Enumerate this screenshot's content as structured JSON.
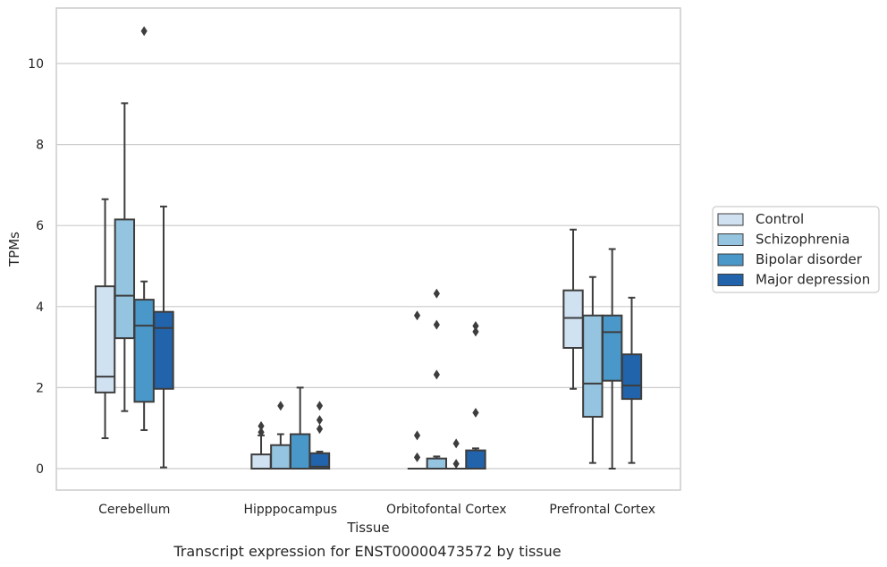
{
  "chart_data": {
    "type": "box",
    "title": "",
    "caption": "Transcript expression for ENST00000473572 by tissue",
    "xlabel": "Tissue",
    "ylabel": "TPMs",
    "ylim": [
      -0.5,
      11.4
    ],
    "yticks": [
      0,
      2,
      4,
      6,
      8,
      10
    ],
    "grid": "horizontal",
    "legend_position": "right",
    "categories": [
      "Cerebellum",
      "Hipppocampus",
      "Orbitofontal Cortex",
      "Prefrontal Cortex"
    ],
    "series": [
      {
        "name": "Control",
        "color": "#d0e1f2",
        "boxes": [
          {
            "whislo": 0.75,
            "q1": 1.88,
            "med": 2.27,
            "q3": 4.5,
            "whishi": 6.65,
            "fliers": []
          },
          {
            "whislo": 0.0,
            "q1": 0.0,
            "med": 0.0,
            "q3": 0.35,
            "whishi": 0.82,
            "fliers": [
              0.9,
              1.05
            ]
          },
          {
            "whislo": 0.0,
            "q1": 0.0,
            "med": 0.0,
            "q3": 0.0,
            "whishi": 0.0,
            "fliers": [
              0.28,
              0.82,
              3.78
            ]
          },
          {
            "whislo": 1.97,
            "q1": 2.98,
            "med": 3.72,
            "q3": 4.4,
            "whishi": 5.9,
            "fliers": []
          }
        ]
      },
      {
        "name": "Schizophrenia",
        "color": "#94c4df",
        "boxes": [
          {
            "whislo": 1.42,
            "q1": 3.22,
            "med": 4.27,
            "q3": 6.15,
            "whishi": 9.02,
            "fliers": []
          },
          {
            "whislo": 0.0,
            "q1": 0.0,
            "med": 0.0,
            "q3": 0.58,
            "whishi": 0.85,
            "fliers": [
              1.55
            ]
          },
          {
            "whislo": 0.0,
            "q1": 0.0,
            "med": 0.0,
            "q3": 0.25,
            "whishi": 0.3,
            "fliers": [
              2.32,
              3.55,
              4.32
            ]
          },
          {
            "whislo": 0.14,
            "q1": 1.28,
            "med": 2.1,
            "q3": 3.78,
            "whishi": 4.73,
            "fliers": []
          }
        ]
      },
      {
        "name": "Bipolar disorder",
        "color": "#4a98c9",
        "boxes": [
          {
            "whislo": 0.95,
            "q1": 1.65,
            "med": 3.53,
            "q3": 4.17,
            "whishi": 4.62,
            "fliers": [
              10.8
            ]
          },
          {
            "whislo": 0.0,
            "q1": 0.0,
            "med": 0.0,
            "q3": 0.85,
            "whishi": 2.0,
            "fliers": []
          },
          {
            "whislo": 0.0,
            "q1": 0.0,
            "med": 0.0,
            "q3": 0.0,
            "whishi": 0.0,
            "fliers": [
              0.12,
              0.62
            ]
          },
          {
            "whislo": 0.0,
            "q1": 2.17,
            "med": 3.37,
            "q3": 3.78,
            "whishi": 5.42,
            "fliers": []
          }
        ]
      },
      {
        "name": "Major depression",
        "color": "#2164ab",
        "boxes": [
          {
            "whislo": 0.03,
            "q1": 1.97,
            "med": 3.47,
            "q3": 3.87,
            "whishi": 6.47,
            "fliers": []
          },
          {
            "whislo": 0.0,
            "q1": 0.0,
            "med": 0.05,
            "q3": 0.38,
            "whishi": 0.42,
            "fliers": [
              0.98,
              1.2,
              1.55
            ]
          },
          {
            "whislo": 0.0,
            "q1": 0.0,
            "med": 0.0,
            "q3": 0.45,
            "whishi": 0.5,
            "fliers": [
              1.38,
              3.38,
              3.52
            ]
          },
          {
            "whislo": 0.14,
            "q1": 1.72,
            "med": 2.05,
            "q3": 2.82,
            "whishi": 4.22,
            "fliers": []
          }
        ]
      }
    ]
  }
}
